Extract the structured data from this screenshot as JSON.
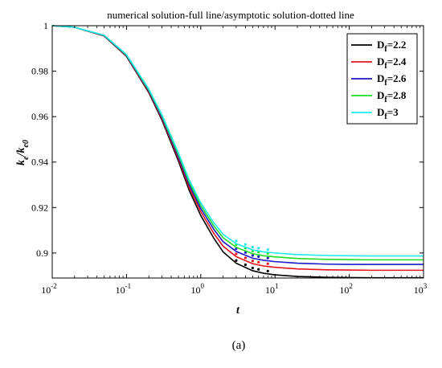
{
  "chart_data": {
    "type": "line",
    "title": "numerical solution-full line/asymptotic solution-dotted line",
    "xlabel": "t",
    "ylabel_main": "k",
    "ylabel_sub_e": "e",
    "ylabel_sep": "/k",
    "ylabel_sub_e0": "e0",
    "xscale": "log",
    "xlim": [
      0.01,
      1000
    ],
    "ylim": [
      0.889,
      1.0
    ],
    "grid": false,
    "legend_position": "top-right",
    "x_ticks": [
      {
        "base": "10",
        "exp": "-2",
        "value": 0.01
      },
      {
        "base": "10",
        "exp": "-1",
        "value": 0.1
      },
      {
        "base": "10",
        "exp": "0",
        "value": 1
      },
      {
        "base": "10",
        "exp": "1",
        "value": 10
      },
      {
        "base": "10",
        "exp": "2",
        "value": 100
      },
      {
        "base": "10",
        "exp": "3",
        "value": 1000
      }
    ],
    "y_ticks": [
      {
        "label": "0.9",
        "value": 0.9
      },
      {
        "label": "0.92",
        "value": 0.92
      },
      {
        "label": "0.94",
        "value": 0.94
      },
      {
        "label": "0.96",
        "value": 0.96
      },
      {
        "label": "0.98",
        "value": 0.98
      },
      {
        "label": "1",
        "value": 1.0
      }
    ],
    "x": [
      0.01,
      0.02,
      0.05,
      0.1,
      0.2,
      0.3,
      0.5,
      0.7,
      1,
      1.5,
      2,
      3,
      5,
      7,
      10,
      20,
      50,
      100,
      200,
      500,
      1000
    ],
    "series": [
      {
        "name_main": "D",
        "name_sub": "f",
        "name_tail": "=2.2",
        "color": "#000000",
        "values": [
          1.0,
          0.9993,
          0.9955,
          0.9865,
          0.9705,
          0.9585,
          0.9405,
          0.9275,
          0.9165,
          0.9065,
          0.9005,
          0.8955,
          0.8922,
          0.8911,
          0.8904,
          0.8897,
          0.8893,
          0.8892,
          0.8891,
          0.8891,
          0.8891
        ]
      },
      {
        "name_main": "D",
        "name_sub": "f",
        "name_tail": "=2.4",
        "color": "#e8141c",
        "values": [
          1.0,
          0.9993,
          0.9956,
          0.9867,
          0.9709,
          0.9591,
          0.9415,
          0.9288,
          0.9182,
          0.9086,
          0.903,
          0.8984,
          0.8953,
          0.8943,
          0.8937,
          0.893,
          0.8926,
          0.8925,
          0.8924,
          0.8924,
          0.8924
        ]
      },
      {
        "name_main": "D",
        "name_sub": "f",
        "name_tail": "=2.6",
        "color": "#1a1ac8",
        "values": [
          1.0,
          0.9993,
          0.9957,
          0.9869,
          0.9713,
          0.9597,
          0.9424,
          0.93,
          0.9196,
          0.9104,
          0.905,
          0.9007,
          0.8977,
          0.8968,
          0.8962,
          0.8955,
          0.8951,
          0.895,
          0.895,
          0.895,
          0.895
        ]
      },
      {
        "name_main": "D",
        "name_sub": "f",
        "name_tail": "=2.8",
        "color": "#22dd22",
        "values": [
          1.0,
          0.9993,
          0.9958,
          0.9871,
          0.9717,
          0.9603,
          0.9433,
          0.9311,
          0.9209,
          0.9119,
          0.9067,
          0.9025,
          0.8997,
          0.8988,
          0.8983,
          0.8976,
          0.8972,
          0.8971,
          0.897,
          0.897,
          0.897
        ]
      },
      {
        "name_main": "D",
        "name_sub": "f",
        "name_tail": "=3",
        "color": "#1cecec",
        "values": [
          1.0,
          0.9993,
          0.9958,
          0.9873,
          0.9721,
          0.9608,
          0.9441,
          0.9321,
          0.9221,
          0.9133,
          0.9082,
          0.9041,
          0.9014,
          0.9005,
          0.9,
          0.8993,
          0.8989,
          0.8988,
          0.8987,
          0.8987,
          0.8987
        ]
      }
    ],
    "caption": "(a)"
  }
}
